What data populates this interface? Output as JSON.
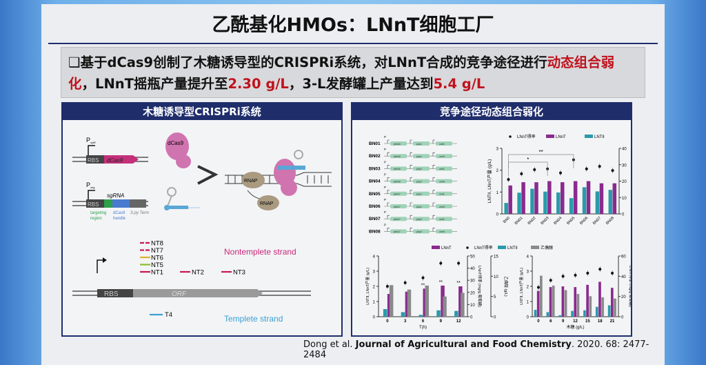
{
  "slide": {
    "title": "乙酰基化HMOs：LNnT细胞工厂",
    "bullet": {
      "marker": "❑",
      "p1": "基于dCas9创制了木糖诱导型的CRISPRi系统，对LNnT合成的竞争途径进行",
      "r1": "动态组合弱化",
      "p2": "，LNnT摇瓶产量提升至",
      "r2": "2.30 g/L",
      "p3": "，3-L发酵罐上产量达到",
      "r3": "5.4 g/L"
    },
    "left_panel": {
      "title": "木糖诱导型CRISPRi系统",
      "labels": {
        "p_xyl": "P",
        "p_xyl_sub": "xylR",
        "rbs": "RBS",
        "dcas9": "dCas9",
        "p_sg": "P",
        "p_sg_sub": "veg",
        "sgrna": "sgRNA",
        "targeting": "targeting",
        "region": "region",
        "dcas9h": "dCas9",
        "handle": "handle",
        "term": "S.py Term",
        "dcas9_protein": "dCas9",
        "rnap": "RNAP",
        "rnap2": "RNAP",
        "orf": "ORF",
        "rbs2": "RBS",
        "nontemplate": "Nontemplete strand",
        "template": "Templete strand"
      },
      "guides": [
        {
          "name": "NT8",
          "color": "#c8174e",
          "dash": true
        },
        {
          "name": "NT7",
          "color": "#c8174e",
          "dash": true
        },
        {
          "name": "NT6",
          "color": "#e0b030"
        },
        {
          "name": "NT5",
          "color": "#8cbc2c"
        },
        {
          "name": "NT1",
          "color": "#c8174e"
        }
      ],
      "guides_row": [
        "NT2",
        "NT3"
      ],
      "t4": "T4"
    },
    "right_panel": {
      "title": "竞争途径动态组合弱化",
      "strains": [
        {
          "id": "BN01",
          "g": [
            "pfkA6",
            "pky1",
            "zwf1"
          ]
        },
        {
          "id": "BN02",
          "g": [
            "pfkA6",
            "pky1",
            "zwf4"
          ]
        },
        {
          "id": "BN03",
          "g": [
            "pfkA6",
            "pky2",
            "zwf1"
          ]
        },
        {
          "id": "BN04",
          "g": [
            "pfkA6",
            "pky2",
            "zwf4"
          ]
        },
        {
          "id": "BN05",
          "g": [
            "pfkA7",
            "pky1",
            "zwf1"
          ]
        },
        {
          "id": "BN06",
          "g": [
            "pfkA7",
            "pky1",
            "zwf4"
          ]
        },
        {
          "id": "BN07",
          "g": [
            "pfkA7",
            "pky2",
            "zwf1"
          ]
        },
        {
          "id": "BN08",
          "g": [
            "pfkA7",
            "pky2",
            "zwf4"
          ]
        }
      ],
      "promoter": "P"
    },
    "citation": {
      "authors": "Dong et al.",
      "journal": "Journal of Agricultural and Food Chemistry",
      "rest": ". 2020. 68: 2477-2484"
    }
  },
  "colors": {
    "navy": "#1f2d6b",
    "red": "#c0121c",
    "lnnt": "#8a2a8e",
    "lntii": "#2a9aaa",
    "lactose": "#8a8a8a"
  },
  "chart_data": [
    {
      "type": "bar",
      "categories": [
        "BN0",
        "BN01",
        "BN02",
        "BN03",
        "BN04",
        "BN05",
        "BN06",
        "BN07",
        "BN08"
      ],
      "legend": [
        "LNnT得率",
        "LNnT",
        "LNTII"
      ],
      "ylabel": "LNTII, LNnT产量 (g/L)",
      "ylabel_right": "LNnT得率 (mg/g 葡萄糖)",
      "ylim": [
        0,
        3
      ],
      "yticks": [
        0,
        1,
        2,
        3
      ],
      "ylim_right": [
        0,
        40
      ],
      "yticks_right": [
        0,
        10,
        20,
        30,
        40
      ],
      "series": [
        {
          "name": "LNTII",
          "values": [
            0.5,
            0.97,
            1.15,
            1.02,
            0.98,
            0.72,
            1.22,
            1.03,
            1.1
          ]
        },
        {
          "name": "LNnT",
          "values": [
            1.3,
            1.45,
            1.45,
            1.5,
            1.45,
            1.5,
            1.5,
            1.4,
            1.4
          ]
        },
        {
          "name": "LNnT得率",
          "axis": "right",
          "values": [
            21,
            24.5,
            27,
            27.5,
            25,
            33,
            27.5,
            29,
            26.5
          ]
        }
      ],
      "annotations": [
        {
          "from": "BN0",
          "to": "BN03",
          "text": "*"
        },
        {
          "from": "BN0",
          "to": "BN05",
          "text": "**"
        }
      ]
    },
    {
      "type": "bar",
      "categories": [
        "0",
        "3",
        "6",
        "9",
        "12"
      ],
      "xlabel": "T(h)",
      "legend": [
        "LNnT",
        "LNnT得率",
        "LNTII",
        "乙偶醇"
      ],
      "ylabel": "LNTII, LNnT产量 (g/L)",
      "ylabel_right": "LNnT得率 (mg/g 葡萄糖)",
      "ylabel_right2": "乙偶醇 (g/L)",
      "ylim": [
        0,
        4
      ],
      "yticks": [
        0,
        1,
        2,
        3,
        4
      ],
      "ylim_right": [
        0,
        50
      ],
      "yticks_right": [
        0,
        10,
        20,
        30,
        40,
        50
      ],
      "ylim_right2": [
        0,
        15
      ],
      "yticks_right2": [
        0,
        5,
        10,
        15
      ],
      "series": [
        {
          "name": "LNTII",
          "values": [
            0.5,
            0.3,
            0.12,
            0.42,
            0.38
          ]
        },
        {
          "name": "LNnT",
          "values": [
            1.5,
            1.65,
            1.85,
            2.05,
            2.0
          ]
        },
        {
          "name": "乙偶醇",
          "axis": "right2",
          "values": [
            7.8,
            6.7,
            7.7,
            5.0,
            5.9
          ]
        },
        {
          "name": "LNnT得率",
          "axis": "right",
          "values": [
            25,
            28,
            32,
            44,
            44
          ]
        }
      ],
      "annotations": [
        {
          "at": "6",
          "text": "**"
        },
        {
          "at": "9",
          "text": "**"
        },
        {
          "at": "12",
          "text": "**"
        }
      ]
    },
    {
      "type": "bar",
      "categories": [
        "0",
        "6",
        "9",
        "12",
        "15",
        "18",
        "21"
      ],
      "xlabel": "木糖 (g/L)",
      "ylabel": "LNTII, LNnT产量 (g/L)",
      "ylabel_right": "LNnT得率 (mg/g 葡萄糖)",
      "ylim": [
        0,
        4
      ],
      "yticks": [
        0,
        1,
        2,
        3,
        4
      ],
      "ylim_right": [
        0,
        60
      ],
      "yticks_right": [
        0,
        20,
        40,
        60
      ],
      "series": [
        {
          "name": "LNTII",
          "values": [
            0.45,
            0.3,
            0.1,
            0.38,
            0.42,
            0.65,
            0.75
          ]
        },
        {
          "name": "LNnT",
          "values": [
            1.7,
            1.95,
            2.0,
            1.95,
            2.1,
            2.3,
            1.9
          ]
        },
        {
          "name": "乙偶醇",
          "values": [
            2.7,
            2.05,
            1.75,
            1.5,
            1.35,
            1.28,
            1.2
          ]
        },
        {
          "name": "LNnT得率",
          "axis": "right",
          "values": [
            29,
            36,
            40,
            41,
            43,
            47,
            43
          ]
        }
      ]
    }
  ]
}
